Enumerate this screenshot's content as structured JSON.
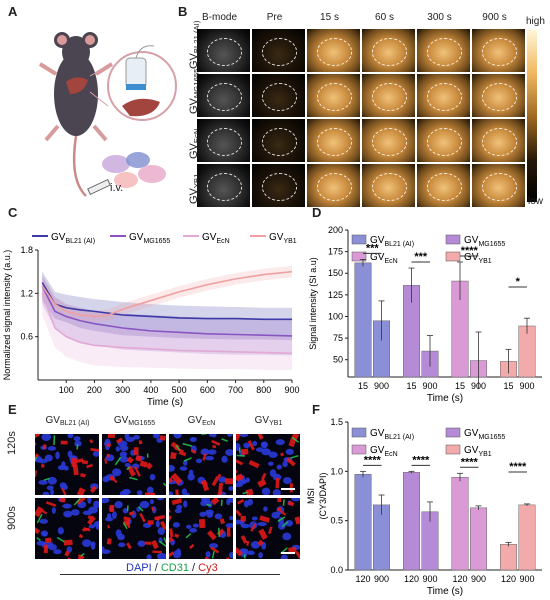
{
  "panels": {
    "a": "A",
    "b": "B",
    "c": "C",
    "d": "D",
    "e": "E",
    "f": "F"
  },
  "panel_a": {
    "iv_label": "i.v."
  },
  "panel_b": {
    "columns": [
      "B-mode",
      "Pre",
      "15 s",
      "60 s",
      "300 s",
      "900 s"
    ],
    "rows": [
      {
        "main": "GV",
        "sub": "BL21 (AI)"
      },
      {
        "main": "GV",
        "sub": "MG1655"
      },
      {
        "main": "GV",
        "sub": "EcN"
      },
      {
        "main": "GV",
        "sub": "YB1"
      }
    ],
    "colorbar": {
      "high": "high",
      "low": "low"
    }
  },
  "legend_c": [
    {
      "main": "GV",
      "sub": "BL21 (AI)",
      "color": "#3b3aa6"
    },
    {
      "main": "GV",
      "sub": "MG1655",
      "color": "#8a55c2"
    },
    {
      "main": "GV",
      "sub": "EcN",
      "color": "#e2a8d6"
    },
    {
      "main": "GV",
      "sub": "YB1",
      "color": "#f0a0a0"
    }
  ],
  "panel_e": {
    "columns": [
      {
        "main": "GV",
        "sub": "BL21 (AI)"
      },
      {
        "main": "GV",
        "sub": "MG1655"
      },
      {
        "main": "GV",
        "sub": "EcN"
      },
      {
        "main": "GV",
        "sub": "YB1"
      }
    ],
    "rows": [
      "120s",
      "900s"
    ],
    "stain": {
      "dapi": "DAPI",
      "sep1": " / ",
      "cd31": "CD31",
      "sep2": " / ",
      "cy3": "Cy3"
    }
  },
  "chart_data": [
    {
      "panel": "C",
      "type": "line",
      "xlabel": "Time (s)",
      "ylabel": "Normalized signal intensity (a.u.)",
      "xlim": [
        0,
        900
      ],
      "ylim": [
        0,
        1.8
      ],
      "xticks": [
        100,
        200,
        300,
        400,
        500,
        600,
        700,
        800,
        900
      ],
      "yticks": [
        0.6,
        1.2,
        1.8
      ],
      "series": [
        {
          "name": "GV BL21 (AI)",
          "x": [
            15,
            60,
            100,
            150,
            200,
            300,
            400,
            500,
            600,
            700,
            800,
            900
          ],
          "y": [
            1.35,
            1.05,
            1.0,
            0.97,
            0.95,
            0.9,
            0.88,
            0.86,
            0.85,
            0.85,
            0.84,
            0.84
          ],
          "lower": [
            1.1,
            0.85,
            0.8,
            0.72,
            0.68,
            0.62,
            0.6,
            0.58,
            0.57,
            0.56,
            0.56,
            0.55
          ],
          "upper": [
            1.5,
            1.22,
            1.18,
            1.15,
            1.12,
            1.08,
            1.05,
            1.03,
            1.02,
            1.01,
            1.0,
            1.0
          ]
        },
        {
          "name": "GV MG1655",
          "x": [
            15,
            60,
            100,
            150,
            200,
            300,
            400,
            500,
            600,
            700,
            800,
            900
          ],
          "y": [
            1.3,
            0.95,
            0.88,
            0.82,
            0.78,
            0.72,
            0.68,
            0.66,
            0.64,
            0.63,
            0.62,
            0.61
          ],
          "lower": [
            1.05,
            0.72,
            0.6,
            0.52,
            0.48,
            0.42,
            0.4,
            0.38,
            0.36,
            0.35,
            0.35,
            0.34
          ],
          "upper": [
            1.45,
            1.15,
            1.05,
            1.0,
            0.96,
            0.92,
            0.9,
            0.88,
            0.86,
            0.85,
            0.84,
            0.84
          ]
        },
        {
          "name": "GV EcN",
          "x": [
            15,
            60,
            100,
            150,
            200,
            300,
            400,
            500,
            600,
            700,
            800,
            900
          ],
          "y": [
            1.2,
            0.72,
            0.6,
            0.52,
            0.48,
            0.45,
            0.43,
            0.41,
            0.4,
            0.39,
            0.38,
            0.37
          ],
          "lower": [
            0.9,
            0.45,
            0.32,
            0.25,
            0.2,
            0.18,
            0.17,
            0.16,
            0.15,
            0.15,
            0.14,
            0.14
          ],
          "upper": [
            1.4,
            1.0,
            0.9,
            0.8,
            0.74,
            0.7,
            0.68,
            0.66,
            0.65,
            0.64,
            0.63,
            0.62
          ]
        },
        {
          "name": "GV YB1",
          "x": [
            15,
            60,
            100,
            150,
            200,
            250,
            300,
            400,
            500,
            600,
            700,
            800,
            900
          ],
          "y": [
            1.3,
            1.05,
            0.95,
            0.9,
            0.88,
            0.9,
            0.98,
            1.1,
            1.22,
            1.32,
            1.4,
            1.46,
            1.5
          ],
          "lower": [
            1.15,
            0.95,
            0.86,
            0.82,
            0.8,
            0.82,
            0.9,
            1.02,
            1.14,
            1.24,
            1.32,
            1.38,
            1.42
          ],
          "upper": [
            1.45,
            1.15,
            1.04,
            0.98,
            0.96,
            0.98,
            1.06,
            1.18,
            1.3,
            1.4,
            1.48,
            1.54,
            1.58
          ]
        }
      ]
    },
    {
      "panel": "D",
      "type": "bar",
      "ylabel": "Signal intensity (SI a.u)",
      "xlabel": "Time (s)",
      "ylim": [
        30,
        200
      ],
      "yticks": [
        50,
        75,
        100,
        125,
        150,
        175,
        200
      ],
      "category_labels": [
        "15",
        "900"
      ],
      "legend": [
        {
          "main": "GV",
          "sub": "BL21 (AI)",
          "color": "#8b8fd6"
        },
        {
          "main": "GV",
          "sub": "MG1655",
          "color": "#b58ad6"
        },
        {
          "main": "GV",
          "sub": "EcN",
          "color": "#d99ad6"
        },
        {
          "main": "GV",
          "sub": "YB1",
          "color": "#f2aaaa"
        }
      ],
      "groups": [
        {
          "values": [
            162,
            95
          ],
          "errors": [
            4,
            23
          ],
          "sig": "***"
        },
        {
          "values": [
            136,
            60
          ],
          "errors": [
            20,
            18
          ],
          "sig": "***"
        },
        {
          "values": [
            141,
            49
          ],
          "errors": [
            22,
            33
          ],
          "sig": "****"
        },
        {
          "values": [
            48,
            89
          ],
          "errors": [
            14,
            9
          ],
          "sig": "*"
        }
      ]
    },
    {
      "panel": "F",
      "type": "bar",
      "ylabel": "MSI",
      "ylabel2": "(CY3/DAPI)",
      "xlabel": "Time (s)",
      "ylim": [
        0,
        1.5
      ],
      "yticks": [
        0.0,
        0.5,
        1.0,
        1.5
      ],
      "category_labels": [
        "120",
        "900"
      ],
      "legend": [
        {
          "main": "GV",
          "sub": "BL21 (AI)",
          "color": "#8b8fd6"
        },
        {
          "main": "GV",
          "sub": "MG1655",
          "color": "#b58ad6"
        },
        {
          "main": "GV",
          "sub": "EcN",
          "color": "#d99ad6"
        },
        {
          "main": "GV",
          "sub": "YB1",
          "color": "#f2aaaa"
        }
      ],
      "groups": [
        {
          "values": [
            0.97,
            0.66
          ],
          "errors": [
            0.03,
            0.1
          ],
          "sig": "****"
        },
        {
          "values": [
            0.99,
            0.59
          ],
          "errors": [
            0.01,
            0.1
          ],
          "sig": "****"
        },
        {
          "values": [
            0.94,
            0.63
          ],
          "errors": [
            0.04,
            0.02
          ],
          "sig": "****"
        },
        {
          "values": [
            0.26,
            0.66
          ],
          "errors": [
            0.02,
            0.01
          ],
          "sig": "****"
        }
      ]
    }
  ]
}
